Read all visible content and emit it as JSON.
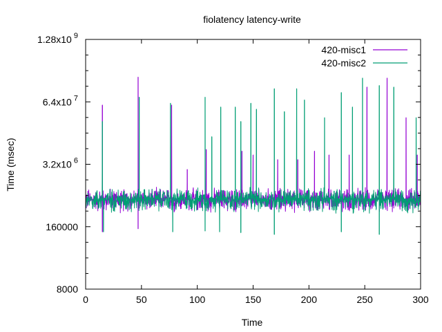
{
  "chart_data": {
    "type": "line",
    "title": "fiolatency latency-write",
    "xlabel": "Time",
    "ylabel": "Time (msec)",
    "xlim": [
      0,
      300
    ],
    "ylim": [
      8000,
      1280000000
    ],
    "yscale": "log",
    "x_ticks": [
      "0",
      "50",
      "100",
      "150",
      "200",
      "250",
      "300"
    ],
    "y_ticks": [
      {
        "value": 8000,
        "mantissa": "8000",
        "exp": ""
      },
      {
        "value": 160000,
        "mantissa": "160000",
        "exp": ""
      },
      {
        "value": 3200000,
        "mantissa": "3.2x10",
        "exp": "6"
      },
      {
        "value": 64000000,
        "mantissa": "6.4x10",
        "exp": "7"
      },
      {
        "value": 1280000000,
        "mantissa": "1.28x10",
        "exp": "9"
      }
    ],
    "legend_position": "top-right",
    "grid": false,
    "baseline_band": {
      "low": 290000,
      "mid": 600000,
      "high": 1100000
    },
    "series": [
      {
        "name": "420-misc1",
        "color": "#9400d3",
        "spikes": [
          {
            "x": 15,
            "value": 55000000
          },
          {
            "x": 47,
            "value": 210000000
          },
          {
            "x": 77,
            "value": 55000000
          },
          {
            "x": 91,
            "value": 2500000
          },
          {
            "x": 108,
            "value": 6500000
          },
          {
            "x": 140,
            "value": 6000000
          },
          {
            "x": 150,
            "value": 5000000
          },
          {
            "x": 172,
            "value": 4000000
          },
          {
            "x": 190,
            "value": 4000000
          },
          {
            "x": 205,
            "value": 6000000
          },
          {
            "x": 218,
            "value": 5000000
          },
          {
            "x": 236,
            "value": 5000000
          },
          {
            "x": 252,
            "value": 130000000
          },
          {
            "x": 270,
            "value": 200000000
          },
          {
            "x": 287,
            "value": 30000000
          },
          {
            "x": 297,
            "value": 5000000
          }
        ],
        "dips": [
          {
            "x": 15,
            "value": 125000
          },
          {
            "x": 47,
            "value": 145000
          }
        ]
      },
      {
        "name": "420-misc2",
        "color": "#009e73",
        "spikes": [
          {
            "x": 15,
            "value": 25000000
          },
          {
            "x": 48,
            "value": 80000000
          },
          {
            "x": 76,
            "value": 60000000
          },
          {
            "x": 107,
            "value": 80000000
          },
          {
            "x": 113,
            "value": 12000000
          },
          {
            "x": 121,
            "value": 50000000
          },
          {
            "x": 134,
            "value": 50000000
          },
          {
            "x": 139,
            "value": 25000000
          },
          {
            "x": 148,
            "value": 60000000
          },
          {
            "x": 153,
            "value": 45000000
          },
          {
            "x": 169,
            "value": 120000000
          },
          {
            "x": 178,
            "value": 40000000
          },
          {
            "x": 189,
            "value": 120000000
          },
          {
            "x": 196,
            "value": 70000000
          },
          {
            "x": 214,
            "value": 30000000
          },
          {
            "x": 229,
            "value": 100000000
          },
          {
            "x": 239,
            "value": 50000000
          },
          {
            "x": 248,
            "value": 200000000
          },
          {
            "x": 263,
            "value": 140000000
          },
          {
            "x": 276,
            "value": 130000000
          },
          {
            "x": 296,
            "value": 30000000
          }
        ],
        "dips": [
          {
            "x": 16,
            "value": 125000
          },
          {
            "x": 78,
            "value": 125000
          },
          {
            "x": 107,
            "value": 130000
          },
          {
            "x": 120,
            "value": 125000
          },
          {
            "x": 139,
            "value": 120000
          },
          {
            "x": 169,
            "value": 110000
          },
          {
            "x": 229,
            "value": 125000
          },
          {
            "x": 263,
            "value": 110000
          }
        ]
      }
    ]
  }
}
